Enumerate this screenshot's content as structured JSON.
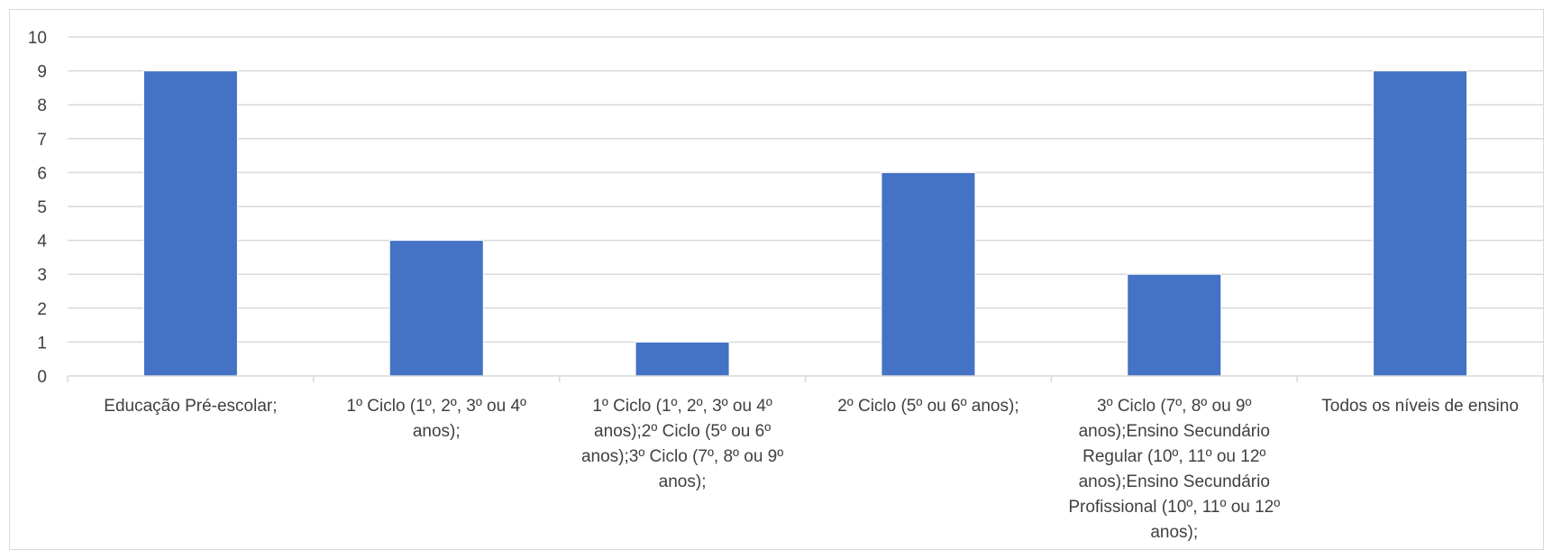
{
  "chart_data": {
    "type": "bar",
    "title": "",
    "xlabel": "",
    "ylabel": "",
    "ylim": [
      0,
      10
    ],
    "yticks": [
      0,
      1,
      2,
      3,
      4,
      5,
      6,
      7,
      8,
      9,
      10
    ],
    "grid": true,
    "legend": "none",
    "bar_color": "#4472C4",
    "categories": [
      "Educação Pré-escolar;",
      "1º Ciclo (1º, 2º, 3º ou 4º anos);",
      "1º Ciclo (1º, 2º, 3º ou 4º anos);2º Ciclo (5º ou 6º anos);3º Ciclo (7º, 8º ou 9º anos);",
      "2º Ciclo (5º ou 6º anos);",
      "3º Ciclo (7º, 8º ou 9º anos);Ensino Secundário Regular (10º, 11º ou 12º anos);Ensino Secundário Profissional (10º, 11º ou 12º anos);",
      "Todos os níveis de ensino"
    ],
    "values": [
      9,
      4,
      1,
      6,
      3,
      9
    ]
  }
}
